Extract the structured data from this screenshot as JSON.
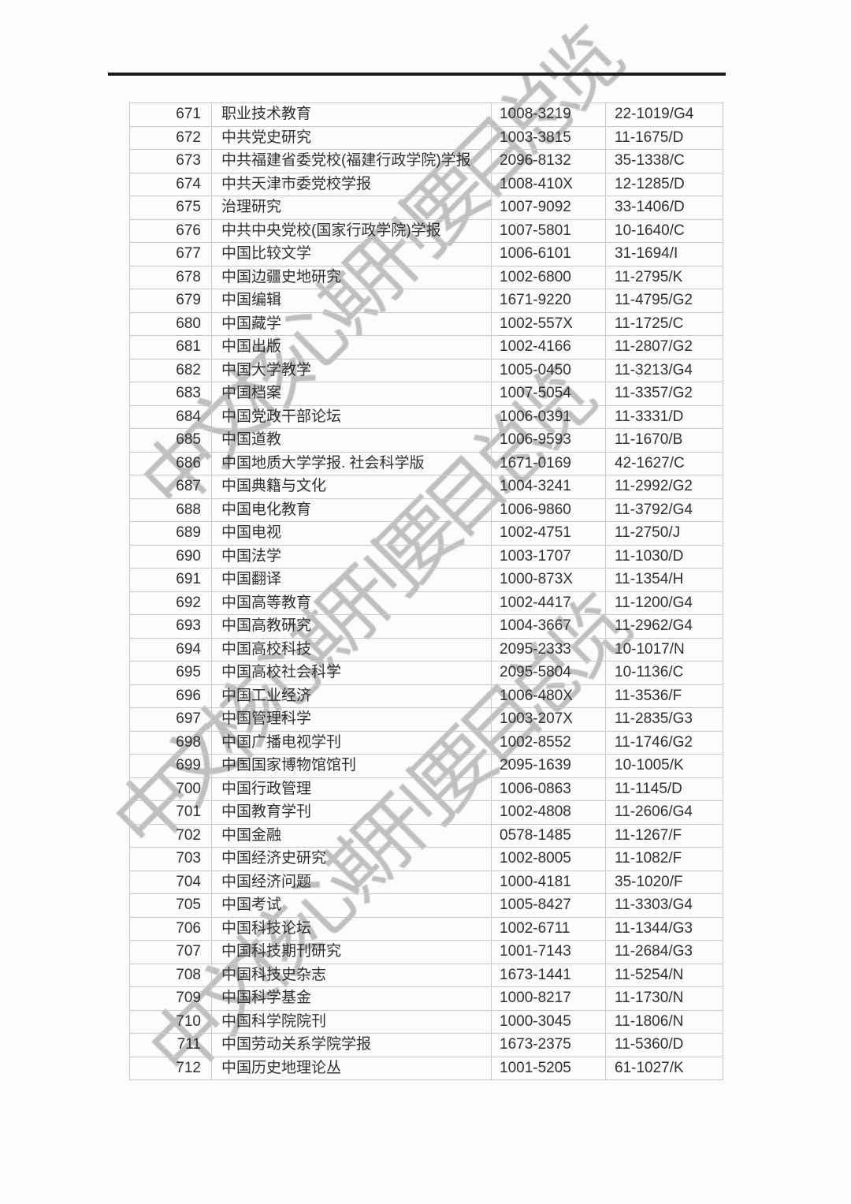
{
  "watermark": {
    "text": "中文核心期刊要目总览",
    "color": "#b5b5b5"
  },
  "table": {
    "rows": [
      {
        "no": "671",
        "title": "职业技术教育",
        "issn": "1008-3219",
        "cn": "22-1019/G4"
      },
      {
        "no": "672",
        "title": "中共党史研究",
        "issn": "1003-3815",
        "cn": "11-1675/D"
      },
      {
        "no": "673",
        "title": "中共福建省委党校(福建行政学院)学报",
        "issn": "2096-8132",
        "cn": "35-1338/C"
      },
      {
        "no": "674",
        "title": "中共天津市委党校学报",
        "issn": "1008-410X",
        "cn": "12-1285/D"
      },
      {
        "no": "675",
        "title": "治理研究",
        "issn": "1007-9092",
        "cn": "33-1406/D"
      },
      {
        "no": "676",
        "title": "中共中央党校(国家行政学院)学报",
        "issn": "1007-5801",
        "cn": "10-1640/C"
      },
      {
        "no": "677",
        "title": "中国比较文学",
        "issn": "1006-6101",
        "cn": "31-1694/I"
      },
      {
        "no": "678",
        "title": "中国边疆史地研究",
        "issn": "1002-6800",
        "cn": "11-2795/K"
      },
      {
        "no": "679",
        "title": "中国编辑",
        "issn": "1671-9220",
        "cn": "11-4795/G2"
      },
      {
        "no": "680",
        "title": "中国藏学",
        "issn": "1002-557X",
        "cn": "11-1725/C"
      },
      {
        "no": "681",
        "title": "中国出版",
        "issn": "1002-4166",
        "cn": "11-2807/G2"
      },
      {
        "no": "682",
        "title": "中国大学教学",
        "issn": "1005-0450",
        "cn": "11-3213/G4"
      },
      {
        "no": "683",
        "title": "中国档案",
        "issn": "1007-5054",
        "cn": "11-3357/G2"
      },
      {
        "no": "684",
        "title": "中国党政干部论坛",
        "issn": "1006-0391",
        "cn": "11-3331/D"
      },
      {
        "no": "685",
        "title": "中国道教",
        "issn": "1006-9593",
        "cn": "11-1670/B"
      },
      {
        "no": "686",
        "title": "中国地质大学学报. 社会科学版",
        "issn": "1671-0169",
        "cn": "42-1627/C"
      },
      {
        "no": "687",
        "title": "中国典籍与文化",
        "issn": "1004-3241",
        "cn": "11-2992/G2"
      },
      {
        "no": "688",
        "title": "中国电化教育",
        "issn": "1006-9860",
        "cn": "11-3792/G4"
      },
      {
        "no": "689",
        "title": "中国电视",
        "issn": "1002-4751",
        "cn": "11-2750/J"
      },
      {
        "no": "690",
        "title": "中国法学",
        "issn": "1003-1707",
        "cn": "11-1030/D"
      },
      {
        "no": "691",
        "title": "中国翻译",
        "issn": "1000-873X",
        "cn": "11-1354/H"
      },
      {
        "no": "692",
        "title": "中国高等教育",
        "issn": "1002-4417",
        "cn": "11-1200/G4"
      },
      {
        "no": "693",
        "title": "中国高教研究",
        "issn": "1004-3667",
        "cn": "11-2962/G4"
      },
      {
        "no": "694",
        "title": "中国高校科技",
        "issn": "2095-2333",
        "cn": "10-1017/N"
      },
      {
        "no": "695",
        "title": "中国高校社会科学",
        "issn": "2095-5804",
        "cn": "10-1136/C"
      },
      {
        "no": "696",
        "title": "中国工业经济",
        "issn": "1006-480X",
        "cn": "11-3536/F"
      },
      {
        "no": "697",
        "title": "中国管理科学",
        "issn": "1003-207X",
        "cn": "11-2835/G3"
      },
      {
        "no": "698",
        "title": "中国广播电视学刊",
        "issn": "1002-8552",
        "cn": "11-1746/G2"
      },
      {
        "no": "699",
        "title": "中国国家博物馆馆刊",
        "issn": "2095-1639",
        "cn": "10-1005/K"
      },
      {
        "no": "700",
        "title": "中国行政管理",
        "issn": "1006-0863",
        "cn": "11-1145/D"
      },
      {
        "no": "701",
        "title": "中国教育学刊",
        "issn": "1002-4808",
        "cn": "11-2606/G4"
      },
      {
        "no": "702",
        "title": "中国金融",
        "issn": "0578-1485",
        "cn": "11-1267/F"
      },
      {
        "no": "703",
        "title": "中国经济史研究",
        "issn": "1002-8005",
        "cn": "11-1082/F"
      },
      {
        "no": "704",
        "title": "中国经济问题",
        "issn": "1000-4181",
        "cn": "35-1020/F"
      },
      {
        "no": "705",
        "title": "中国考试",
        "issn": "1005-8427",
        "cn": "11-3303/G4"
      },
      {
        "no": "706",
        "title": "中国科技论坛",
        "issn": "1002-6711",
        "cn": "11-1344/G3"
      },
      {
        "no": "707",
        "title": "中国科技期刊研究",
        "issn": "1001-7143",
        "cn": "11-2684/G3"
      },
      {
        "no": "708",
        "title": "中国科技史杂志",
        "issn": "1673-1441",
        "cn": "11-5254/N"
      },
      {
        "no": "709",
        "title": "中国科学基金",
        "issn": "1000-8217",
        "cn": "11-1730/N"
      },
      {
        "no": "710",
        "title": "中国科学院院刊",
        "issn": "1000-3045",
        "cn": "11-1806/N"
      },
      {
        "no": "711",
        "title": "中国劳动关系学院学报",
        "issn": "1673-2375",
        "cn": "11-5360/D"
      },
      {
        "no": "712",
        "title": "中国历史地理论丛",
        "issn": "1001-5205",
        "cn": "61-1027/K"
      }
    ]
  }
}
